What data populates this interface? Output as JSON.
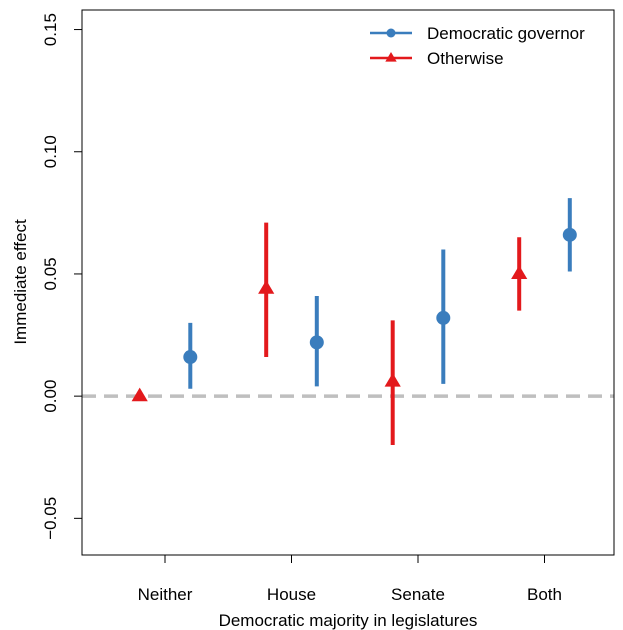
{
  "chart_data": {
    "type": "scatter",
    "xlabel": "Democratic majority in legislatures",
    "ylabel": "Immediate effect",
    "categories": [
      "Neither",
      "House",
      "Senate",
      "Both"
    ],
    "ylim": [
      -0.065,
      0.158
    ],
    "yticks": [
      -0.05,
      0.0,
      0.05,
      0.1,
      0.15
    ],
    "ytick_labels": [
      "−0.05",
      "0.00",
      "0.05",
      "0.10",
      "0.15"
    ],
    "reference_line": {
      "y": 0,
      "style": "dashed",
      "color": "#bfbfbf"
    },
    "legend": {
      "position": "top-right"
    },
    "series": [
      {
        "name": "Democratic governor",
        "marker": "circle",
        "color": "#3a7dbd",
        "offset": 0.2,
        "points": [
          {
            "category": "Neither",
            "y": 0.016,
            "lower": 0.003,
            "upper": 0.03
          },
          {
            "category": "House",
            "y": 0.022,
            "lower": 0.004,
            "upper": 0.041
          },
          {
            "category": "Senate",
            "y": 0.032,
            "lower": 0.005,
            "upper": 0.06
          },
          {
            "category": "Both",
            "y": 0.066,
            "lower": 0.051,
            "upper": 0.081
          }
        ]
      },
      {
        "name": "Otherwise",
        "marker": "triangle",
        "color": "#e3191c",
        "offset": -0.2,
        "points": [
          {
            "category": "Neither",
            "y": 0.0,
            "lower": null,
            "upper": null
          },
          {
            "category": "House",
            "y": 0.044,
            "lower": 0.016,
            "upper": 0.071
          },
          {
            "category": "Senate",
            "y": 0.006,
            "lower": -0.02,
            "upper": 0.031
          },
          {
            "category": "Both",
            "y": 0.05,
            "lower": 0.035,
            "upper": 0.065
          }
        ]
      }
    ]
  }
}
